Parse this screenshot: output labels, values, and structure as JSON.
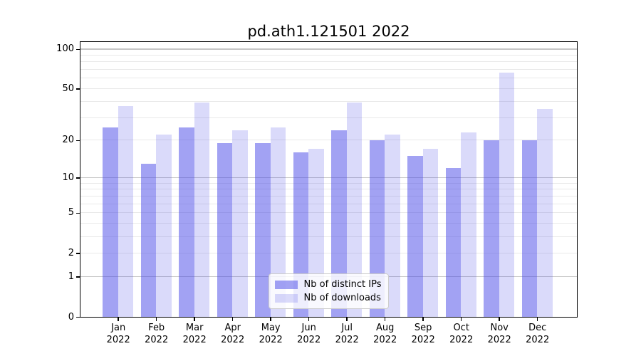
{
  "chart_data": {
    "type": "bar",
    "title": "pd.ath1.121501 2022",
    "categories": [
      "Jan",
      "Feb",
      "Mar",
      "Apr",
      "May",
      "Jun",
      "Jul",
      "Aug",
      "Sep",
      "Oct",
      "Nov",
      "Dec"
    ],
    "year_label": "2022",
    "series": [
      {
        "name": "Nb of distinct IPs",
        "color": "rgba(70,70,232,0.5)",
        "values": [
          25,
          13,
          25,
          19,
          19,
          16,
          24,
          20,
          15,
          12,
          20,
          20
        ]
      },
      {
        "name": "Nb of downloads",
        "color": "rgba(70,70,232,0.2)",
        "values": [
          37,
          22,
          39,
          24,
          25,
          17,
          39,
          22,
          17,
          23,
          66,
          35
        ]
      }
    ],
    "y_ticks": [
      0,
      1,
      2,
      5,
      10,
      20,
      50,
      100
    ],
    "y_scale": "log1p",
    "ylim": [
      0,
      113
    ],
    "xlabel": "",
    "ylabel": "",
    "grid": true,
    "legend_position": "lower center",
    "grid_major_color": "#c6c6c6",
    "grid_minor_color": "#e9e9e9"
  }
}
